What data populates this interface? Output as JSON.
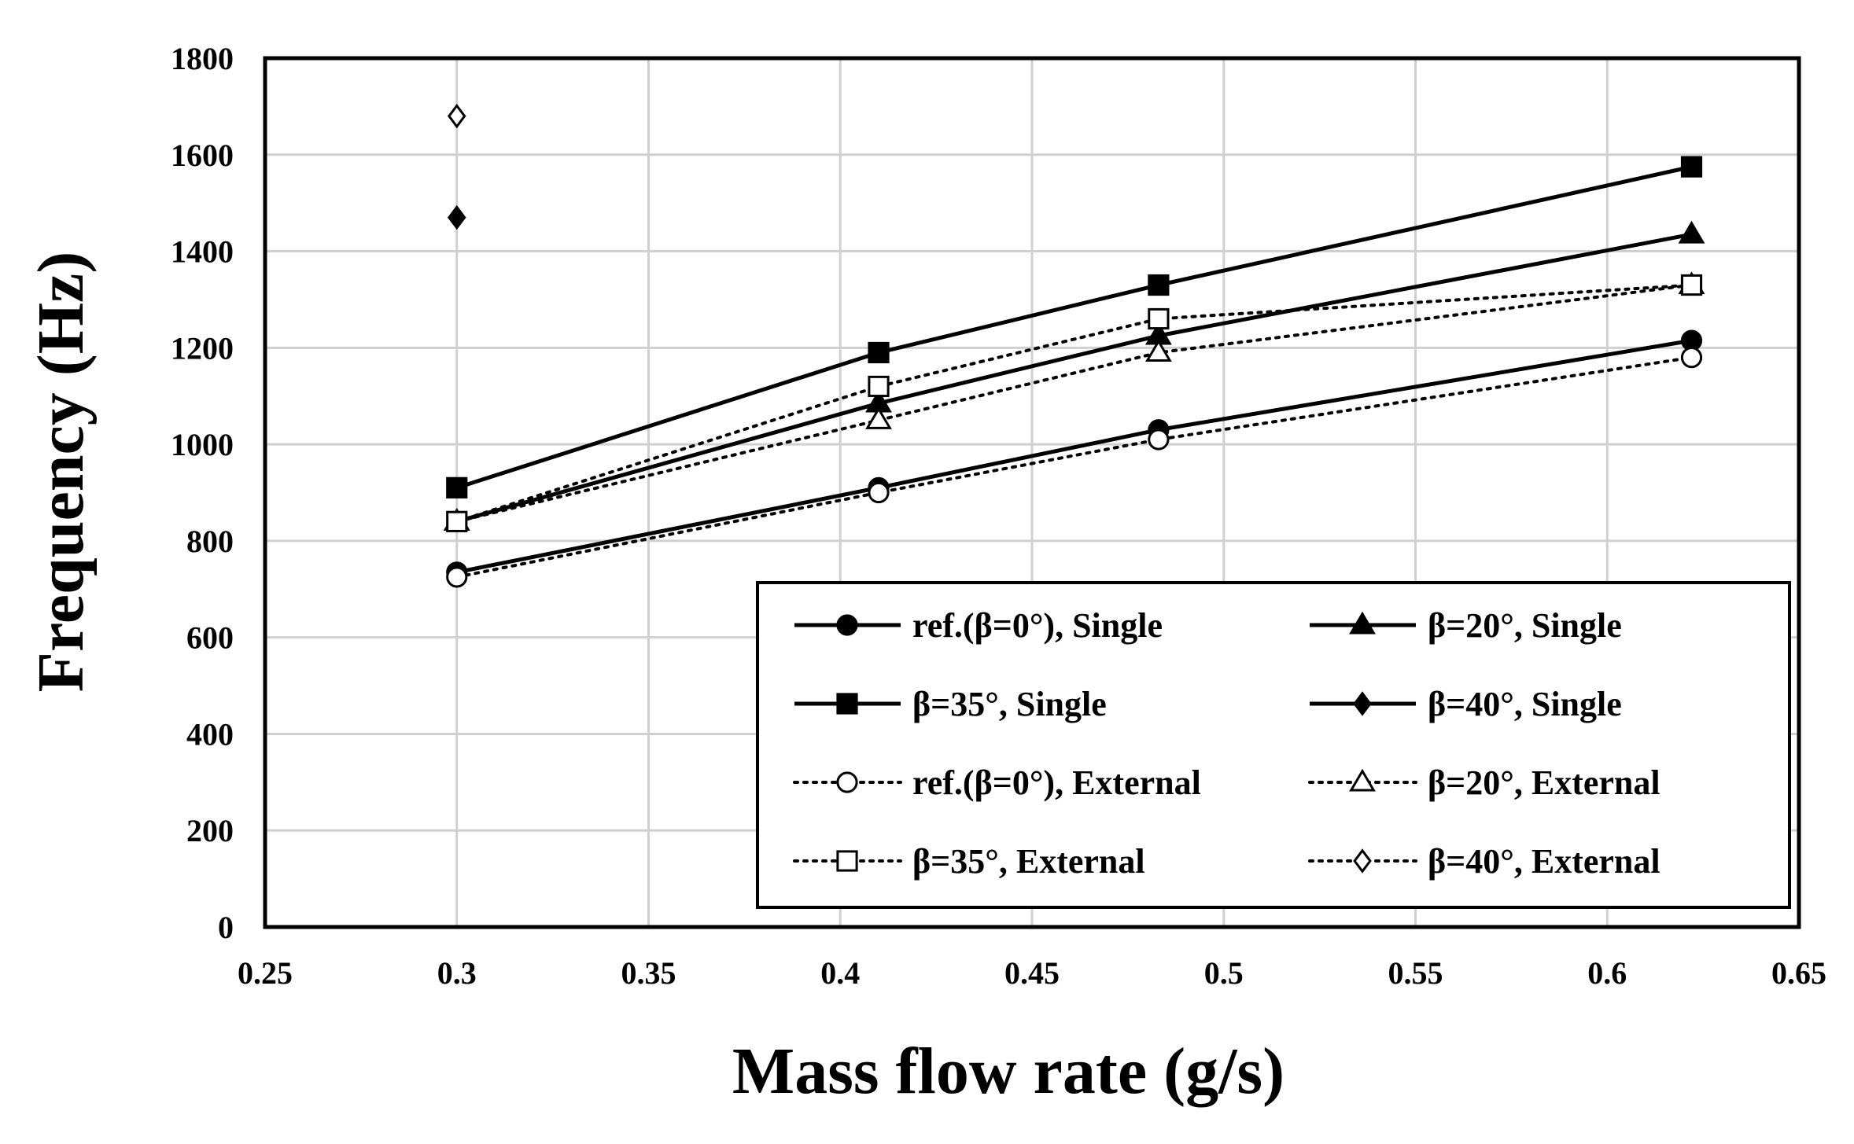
{
  "chart_data": {
    "type": "line",
    "title": "",
    "xlabel": "Mass flow rate (g/s)",
    "ylabel": "Frequency (Hz)",
    "xlim": [
      0.25,
      0.65
    ],
    "ylim": [
      0,
      1800
    ],
    "xticks": [
      "0.25",
      "0.3",
      "0.35",
      "0.4",
      "0.45",
      "0.5",
      "0.55",
      "0.6",
      "0.65"
    ],
    "yticks": [
      "0",
      "200",
      "400",
      "600",
      "800",
      "1000",
      "1200",
      "1400",
      "1600",
      "1800"
    ],
    "grid": true,
    "legend_position": "bottom-right",
    "series": [
      {
        "name": "ref.(β=0°), Single",
        "line": "solid",
        "marker": "circle",
        "filled": true,
        "x": [
          0.3,
          0.41,
          0.483,
          0.622
        ],
        "y": [
          735,
          910,
          1030,
          1215
        ]
      },
      {
        "name": "β=20°, Single",
        "line": "solid",
        "marker": "triangle",
        "filled": true,
        "x": [
          0.3,
          0.41,
          0.483,
          0.622
        ],
        "y": [
          840,
          1085,
          1225,
          1435
        ]
      },
      {
        "name": "β=35°, Single",
        "line": "solid",
        "marker": "square",
        "filled": true,
        "x": [
          0.3,
          0.41,
          0.483,
          0.622
        ],
        "y": [
          910,
          1190,
          1330,
          1575
        ]
      },
      {
        "name": "β=40°, Single",
        "line": "solid",
        "marker": "diamond",
        "filled": true,
        "x": [
          0.3
        ],
        "y": [
          1470
        ]
      },
      {
        "name": "ref.(β=0°), External",
        "line": "dotted",
        "marker": "circle",
        "filled": false,
        "x": [
          0.3,
          0.41,
          0.483,
          0.622
        ],
        "y": [
          725,
          900,
          1010,
          1180
        ]
      },
      {
        "name": "β=20°, External",
        "line": "dotted",
        "marker": "triangle",
        "filled": false,
        "x": [
          0.3,
          0.41,
          0.483,
          0.622
        ],
        "y": [
          840,
          1050,
          1190,
          1330
        ]
      },
      {
        "name": "β=35°, External",
        "line": "dotted",
        "marker": "square",
        "filled": false,
        "x": [
          0.3,
          0.41,
          0.483,
          0.622
        ],
        "y": [
          840,
          1120,
          1260,
          1330
        ]
      },
      {
        "name": "β=40°, External",
        "line": "dotted",
        "marker": "diamond",
        "filled": false,
        "x": [
          0.3
        ],
        "y": [
          1680
        ]
      }
    ]
  }
}
